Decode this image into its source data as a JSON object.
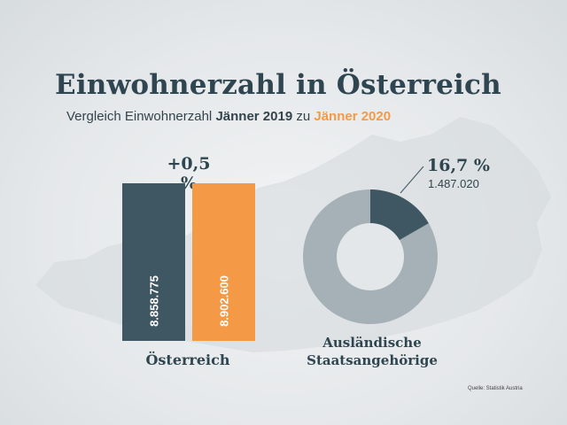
{
  "header": {
    "title": "Einwohnerzahl in Österreich",
    "subtitle_part1": "Vergleich Einwohnerzahl ",
    "subtitle_part2": "Jänner 2019",
    "subtitle_part3": " zu ",
    "subtitle_part4": "Jänner 2020"
  },
  "source": "Quelle: Statistik Austria",
  "colors": {
    "dark": "#3f5762",
    "orange": "#f49a46",
    "donut_light": "#a5b1b7",
    "donut_hole": "#e3e7e9"
  },
  "chart_data": [
    {
      "type": "bar",
      "categories": [
        "Österreich"
      ],
      "series": [
        {
          "values": [
            8858775
          ],
          "label": "8.858.775"
        },
        {
          "values": [
            8902600
          ],
          "label": "8.902.600"
        }
      ],
      "annotation": "+0,5 %",
      "category_label": "Österreich"
    },
    {
      "type": "pie",
      "donut": true,
      "slices": [
        {
          "value": 16.7,
          "label": "16,7 %",
          "count": "1.487.020"
        },
        {
          "value": 83.3
        }
      ],
      "label": "Ausländische Staatsangehörige"
    }
  ]
}
